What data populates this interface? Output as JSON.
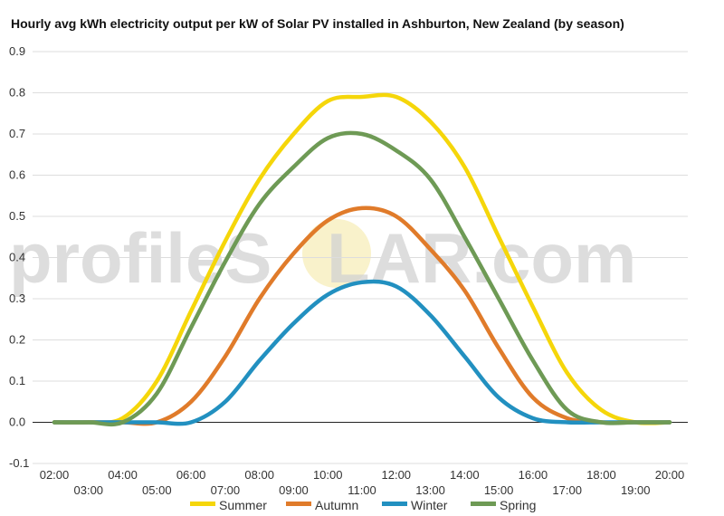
{
  "chart_data": {
    "type": "line",
    "title": "Hourly avg kWh electricity output per kW of Solar PV installed in Ashburton, New Zealand (by season)",
    "xlabel": "",
    "ylabel": "",
    "x": [
      "02:00",
      "03:00",
      "04:00",
      "05:00",
      "06:00",
      "07:00",
      "08:00",
      "09:00",
      "10:00",
      "11:00",
      "12:00",
      "13:00",
      "14:00",
      "15:00",
      "16:00",
      "17:00",
      "18:00",
      "19:00",
      "20:00"
    ],
    "ylim": [
      -0.1,
      0.9
    ],
    "yticks": [
      "-0.1",
      "0.0",
      "0.1",
      "0.2",
      "0.3",
      "0.4",
      "0.5",
      "0.6",
      "0.7",
      "0.8",
      "0.9"
    ],
    "grid": true,
    "legend_position": "bottom",
    "series": [
      {
        "name": "Summer",
        "color": "#f5d60a",
        "values": [
          0.0,
          0.0,
          0.01,
          0.1,
          0.27,
          0.44,
          0.59,
          0.7,
          0.78,
          0.79,
          0.79,
          0.73,
          0.62,
          0.45,
          0.28,
          0.12,
          0.03,
          0.0,
          0.0
        ]
      },
      {
        "name": "Autumn",
        "color": "#e07b2a",
        "values": [
          0.0,
          0.0,
          0.0,
          0.0,
          0.05,
          0.16,
          0.3,
          0.41,
          0.49,
          0.52,
          0.5,
          0.42,
          0.32,
          0.18,
          0.06,
          0.01,
          0.0,
          0.0,
          0.0
        ]
      },
      {
        "name": "Winter",
        "color": "#2290c0",
        "values": [
          0.0,
          0.0,
          0.0,
          0.0,
          0.0,
          0.05,
          0.15,
          0.24,
          0.31,
          0.34,
          0.33,
          0.26,
          0.16,
          0.06,
          0.01,
          0.0,
          0.0,
          0.0,
          0.0
        ]
      },
      {
        "name": "Spring",
        "color": "#6e9a55",
        "values": [
          0.0,
          0.0,
          0.0,
          0.07,
          0.23,
          0.39,
          0.53,
          0.62,
          0.69,
          0.7,
          0.66,
          0.59,
          0.45,
          0.3,
          0.15,
          0.03,
          0.0,
          0.0,
          0.0
        ]
      }
    ]
  },
  "watermark": {
    "part1": "profileS",
    "part2": "O",
    "part3": "LAR.com",
    "sun_color": "#f5e9a8"
  }
}
